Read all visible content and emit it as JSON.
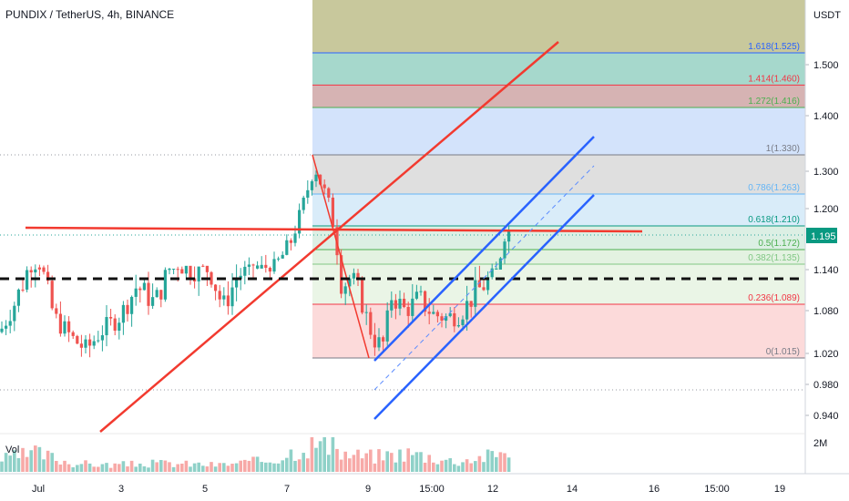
{
  "header": {
    "title": "PUNDIX / TetherUS, 4h, BINANCE"
  },
  "colors": {
    "up": "#26a69a",
    "down": "#ef5350",
    "red_line": "#f23a2f",
    "blue_line": "#2962ff",
    "black_dash": "#111111"
  },
  "chart_data": {
    "type": "candlestick",
    "symbol": "PUNDIX / TetherUS, 4h, BINANCE",
    "y_unit_label": "USDT",
    "price_ticks": [
      "1.500",
      "1.400",
      "1.300",
      "1.200",
      "1.140",
      "1.080",
      "1.020",
      "0.980",
      "0.940"
    ],
    "current_price": {
      "value": 1.195,
      "label": "1.195"
    },
    "volume_label": "Vol",
    "volume_tick": "2M",
    "x_ticks": [
      "Jul",
      "3",
      "5",
      "7",
      "9",
      "15:00",
      "12",
      "14",
      "16",
      "15:00",
      "19"
    ],
    "fib_levels": [
      {
        "ratio": 1.618,
        "price": 1.525,
        "label": "1.618(1.525)",
        "color": "#2962ff",
        "band": "#c8c89c"
      },
      {
        "ratio": 1.414,
        "price": 1.46,
        "label": "1.414(1.460)",
        "color": "#f23645",
        "band": "#a6d8cc"
      },
      {
        "ratio": 1.272,
        "price": 1.416,
        "label": "1.272(1.416)",
        "color": "#4caf50",
        "band": "#d6b3b3"
      },
      {
        "ratio": 1.0,
        "price": 1.33,
        "label": "1(1.330)",
        "color": "#787b86",
        "band": "#d3e3fb"
      },
      {
        "ratio": 0.786,
        "price": 1.263,
        "label": "0.786(1.263)",
        "color": "#64b5f6",
        "band": "#dfdfdf"
      },
      {
        "ratio": 0.618,
        "price": 1.21,
        "label": "0.618(1.210)",
        "color": "#089981",
        "band": "#d9ecf9"
      },
      {
        "ratio": 0.5,
        "price": 1.172,
        "label": "0.5(1.172)",
        "color": "#4caf50",
        "band": "#dcefe4"
      },
      {
        "ratio": 0.382,
        "price": 1.135,
        "label": "0.382(1.135)",
        "color": "#81c784",
        "band": "#e3f2e1"
      },
      {
        "ratio": 0.236,
        "price": 1.089,
        "label": "0.236(1.089)",
        "color": "#f23645",
        "band": "#eaf5e6"
      },
      {
        "ratio": 0.0,
        "price": 1.015,
        "label": "0(1.015)",
        "color": "#787b86",
        "band": "#fcdada"
      }
    ],
    "close_path": [
      [
        0,
        1.05
      ],
      [
        20,
        1.1
      ],
      [
        40,
        1.155
      ],
      [
        60,
        1.07
      ],
      [
        80,
        1.04
      ],
      [
        95,
        1.025
      ],
      [
        110,
        1.05
      ],
      [
        130,
        1.07
      ],
      [
        150,
        1.11
      ],
      [
        170,
        1.09
      ],
      [
        190,
        1.14
      ],
      [
        210,
        1.13
      ],
      [
        230,
        1.13
      ],
      [
        245,
        1.085
      ],
      [
        260,
        1.12
      ],
      [
        280,
        1.14
      ],
      [
        300,
        1.14
      ],
      [
        318,
        1.18
      ],
      [
        330,
        1.23
      ],
      [
        345,
        1.31
      ],
      [
        360,
        1.25
      ],
      [
        368,
        1.2
      ],
      [
        375,
        1.11
      ],
      [
        385,
        1.12
      ],
      [
        395,
        1.1
      ],
      [
        410,
        1.04
      ],
      [
        420,
        1.03
      ],
      [
        430,
        1.1
      ],
      [
        445,
        1.08
      ],
      [
        460,
        1.095
      ],
      [
        475,
        1.075
      ],
      [
        490,
        1.07
      ],
      [
        505,
        1.075
      ],
      [
        520,
        1.1
      ],
      [
        535,
        1.115
      ],
      [
        545,
        1.135
      ],
      [
        555,
        1.205
      ],
      [
        563,
        1.195
      ]
    ],
    "volume_path": [
      [
        0,
        0.35
      ],
      [
        40,
        0.55
      ],
      [
        80,
        0.25
      ],
      [
        120,
        0.2
      ],
      [
        180,
        0.25
      ],
      [
        240,
        0.2
      ],
      [
        300,
        0.35
      ],
      [
        330,
        0.7
      ],
      [
        350,
        0.85
      ],
      [
        380,
        0.5
      ],
      [
        410,
        0.45
      ],
      [
        450,
        0.55
      ],
      [
        500,
        0.3
      ],
      [
        545,
        0.5
      ],
      [
        563,
        0.75
      ]
    ],
    "grid": false
  }
}
